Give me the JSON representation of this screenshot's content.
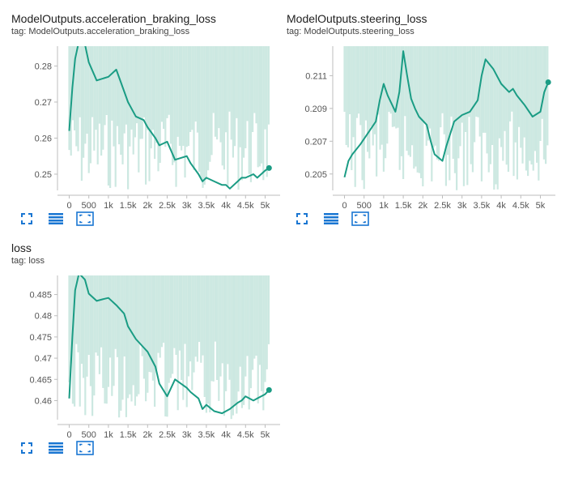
{
  "colors": {
    "line": "#1a9c84",
    "band": "#cce8e1",
    "axis": "#bdbdbd",
    "icon": "#1976d2"
  },
  "toolbar_icons": [
    "fullscreen-icon",
    "data-table-icon",
    "fit-domain-icon"
  ],
  "cards": [
    {
      "title": "ModelOutputs.acceleration_braking_loss",
      "tag": "tag: ModelOutputs.acceleration_braking_loss",
      "chart_data": {
        "type": "line",
        "xlabel": "",
        "ylabel": "",
        "xlim": [
          -300,
          5300
        ],
        "ylim": [
          0.2455,
          0.2855
        ],
        "x_ticks": [
          0,
          500,
          1000,
          1500,
          2000,
          2500,
          3000,
          3500,
          4000,
          4500,
          5000
        ],
        "x_tick_labels": [
          "0",
          "500",
          "1k",
          "1.5k",
          "2k",
          "2.5k",
          "3k",
          "3.5k",
          "4k",
          "4.5k",
          "5k"
        ],
        "y_ticks": [
          0.25,
          0.26,
          0.27,
          0.28
        ],
        "y_tick_labels": [
          "0.25",
          "0.26",
          "0.27",
          "0.28"
        ],
        "series": [
          {
            "x": [
              0,
              80,
              150,
              250,
              400,
              500,
              700,
              1000,
              1200,
              1400,
              1500,
              1700,
              1900,
              2000,
              2200,
              2300,
              2500,
              2700,
              3000,
              3100,
              3300,
              3400,
              3500,
              3700,
              3900,
              4000,
              4100,
              4300,
              4400,
              4500,
              4700,
              4800,
              5000,
              5100
            ],
            "y": [
              0.262,
              0.274,
              0.282,
              0.287,
              0.286,
              0.281,
              0.276,
              0.277,
              0.279,
              0.273,
              0.27,
              0.266,
              0.265,
              0.263,
              0.26,
              0.258,
              0.259,
              0.254,
              0.255,
              0.253,
              0.25,
              0.248,
              0.249,
              0.248,
              0.247,
              0.247,
              0.246,
              0.248,
              0.249,
              0.249,
              0.25,
              0.249,
              0.251,
              0.2517
            ]
          }
        ],
        "last_point": {
          "x": 5100,
          "y": 0.2517
        }
      }
    },
    {
      "title": "ModelOutputs.steering_loss",
      "tag": "tag: ModelOutputs.steering_loss",
      "chart_data": {
        "type": "line",
        "xlabel": "",
        "ylabel": "",
        "xlim": [
          -300,
          5300
        ],
        "ylim": [
          0.204,
          0.2128
        ],
        "x_ticks": [
          0,
          500,
          1000,
          1500,
          2000,
          2500,
          3000,
          3500,
          4000,
          4500,
          5000
        ],
        "x_tick_labels": [
          "0",
          "500",
          "1k",
          "1.5k",
          "2k",
          "2.5k",
          "3k",
          "3.5k",
          "4k",
          "4.5k",
          "5k"
        ],
        "y_ticks": [
          0.205,
          0.207,
          0.209,
          0.211
        ],
        "y_tick_labels": [
          "0.205",
          "0.207",
          "0.209",
          "0.211"
        ],
        "series": [
          {
            "x": [
              0,
              100,
              200,
              400,
              600,
              800,
              900,
              1000,
              1100,
              1300,
              1400,
              1500,
              1600,
              1700,
              1800,
              1900,
              2100,
              2200,
              2300,
              2500,
              2600,
              2800,
              3000,
              3200,
              3400,
              3500,
              3600,
              3800,
              4000,
              4200,
              4300,
              4400,
              4600,
              4800,
              5000,
              5100,
              5200
            ],
            "y": [
              0.2048,
              0.2058,
              0.2062,
              0.2068,
              0.2075,
              0.2082,
              0.2095,
              0.2105,
              0.2098,
              0.2088,
              0.21,
              0.2125,
              0.211,
              0.2096,
              0.209,
              0.2085,
              0.208,
              0.207,
              0.2062,
              0.2058,
              0.2067,
              0.2082,
              0.2086,
              0.2088,
              0.2095,
              0.211,
              0.212,
              0.2114,
              0.2105,
              0.21,
              0.2102,
              0.2098,
              0.2092,
              0.2085,
              0.2088,
              0.21,
              0.2106
            ]
          }
        ],
        "last_point": {
          "x": 5200,
          "y": 0.2106
        }
      }
    },
    {
      "title": "loss",
      "tag": "tag: loss",
      "chart_data": {
        "type": "line",
        "xlabel": "",
        "ylabel": "",
        "xlim": [
          -300,
          5300
        ],
        "ylim": [
          0.4555,
          0.4895
        ],
        "x_ticks": [
          0,
          500,
          1000,
          1500,
          2000,
          2500,
          3000,
          3500,
          4000,
          4500,
          5000
        ],
        "x_tick_labels": [
          "0",
          "500",
          "1k",
          "1.5k",
          "2k",
          "2.5k",
          "3k",
          "3.5k",
          "4k",
          "4.5k",
          "5k"
        ],
        "y_ticks": [
          0.46,
          0.465,
          0.47,
          0.475,
          0.48,
          0.485
        ],
        "y_tick_labels": [
          "0.46",
          "0.465",
          "0.47",
          "0.475",
          "0.48",
          "0.485"
        ],
        "series": [
          {
            "x": [
              0,
              80,
              150,
              250,
              400,
              500,
              700,
              900,
              1000,
              1200,
              1400,
              1500,
              1700,
              1900,
              2000,
              2200,
              2300,
              2500,
              2700,
              3000,
              3100,
              3300,
              3400,
              3500,
              3700,
              3900,
              4000,
              4100,
              4300,
              4400,
              4500,
              4700,
              4800,
              5000,
              5100
            ],
            "y": [
              0.4605,
              0.475,
              0.486,
              0.49,
              0.4885,
              0.4852,
              0.4835,
              0.484,
              0.4842,
              0.4825,
              0.4805,
              0.4775,
              0.4745,
              0.4725,
              0.4715,
              0.468,
              0.464,
              0.461,
              0.465,
              0.463,
              0.462,
              0.4605,
              0.458,
              0.459,
              0.4575,
              0.457,
              0.4575,
              0.458,
              0.4595,
              0.46,
              0.461,
              0.46,
              0.4605,
              0.4615,
              0.4625
            ]
          }
        ],
        "last_point": {
          "x": 5100,
          "y": 0.4625
        }
      }
    }
  ]
}
